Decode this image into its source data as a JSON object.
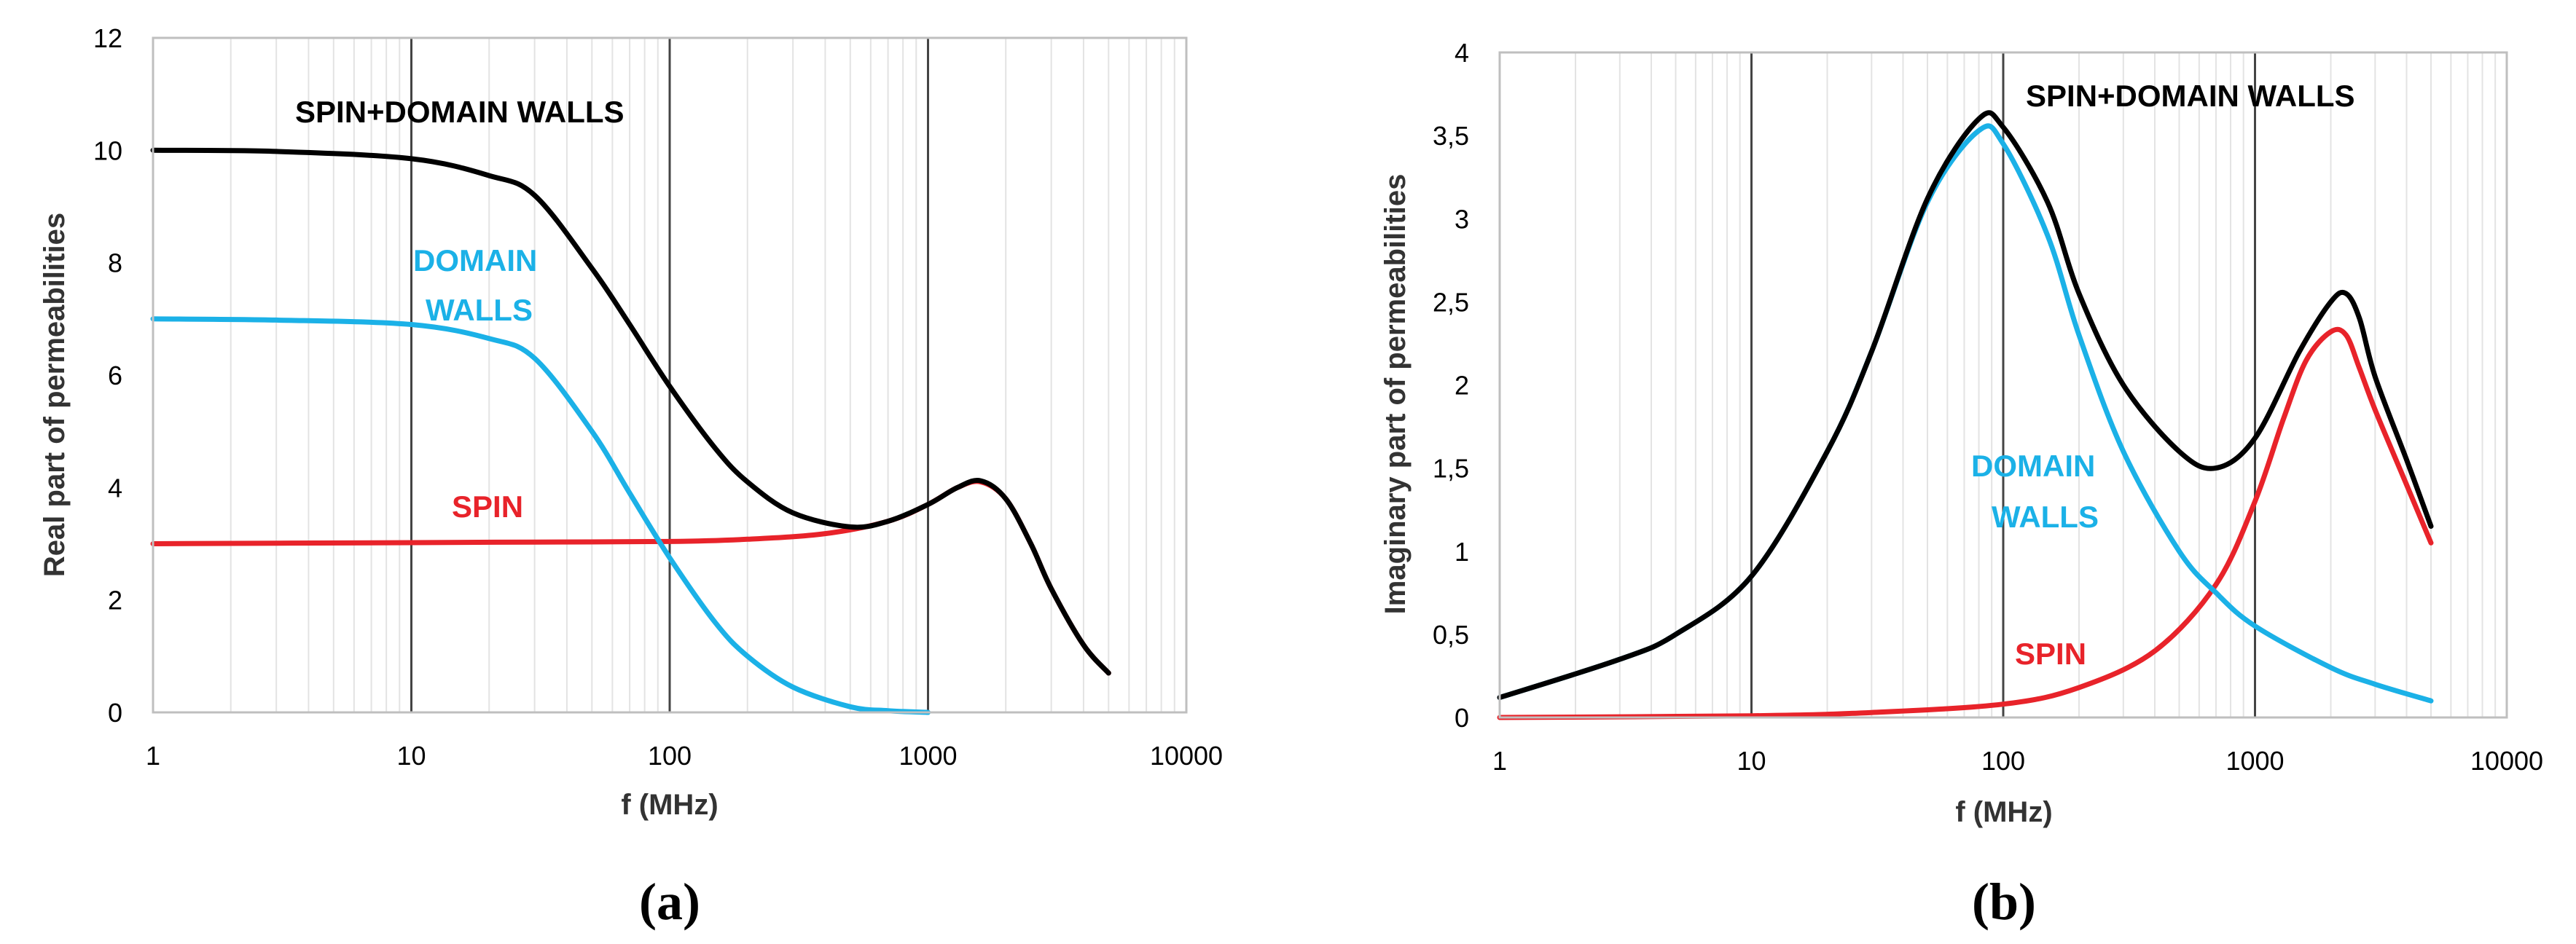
{
  "chart_data": [
    {
      "type": "line",
      "panel_label": "(a)",
      "xlabel": "f (MHz)",
      "ylabel": "Real part of permeabilities",
      "x_scale": "log",
      "xlim": [
        1,
        10000
      ],
      "ylim": [
        0,
        12
      ],
      "x_ticks": [
        "1",
        "10",
        "100",
        "1000",
        "10000"
      ],
      "y_ticks": [
        "0",
        "2",
        "4",
        "6",
        "8",
        "10",
        "12"
      ],
      "grid": "minor-vertical",
      "annotations": [
        {
          "text": "SPIN+DOMAIN WALLS",
          "color": "#000000"
        },
        {
          "text": "DOMAIN",
          "color": "#1bb1e7"
        },
        {
          "text": "WALLS",
          "color": "#1bb1e7"
        },
        {
          "text": "SPIN",
          "color": "#e8232a"
        }
      ],
      "series": [
        {
          "key": "spin",
          "color": "#e8232a",
          "x": [
            1,
            10,
            30,
            100,
            200,
            400,
            700,
            1000,
            1300,
            1600,
            2000,
            2500,
            3000,
            4000,
            5000
          ],
          "y": [
            3,
            3.02,
            3.03,
            3.04,
            3.08,
            3.18,
            3.4,
            3.7,
            4.0,
            4.1,
            3.8,
            3.0,
            2.2,
            1.2,
            0.7
          ]
        },
        {
          "key": "domain_walls",
          "color": "#1bb1e7",
          "x": [
            1,
            3,
            10,
            20,
            30,
            50,
            70,
            100,
            150,
            200,
            300,
            500,
            700,
            1000
          ],
          "y": [
            7,
            6.98,
            6.9,
            6.65,
            6.3,
            5.0,
            3.9,
            2.75,
            1.6,
            1.0,
            0.45,
            0.1,
            0.03,
            0.0
          ]
        },
        {
          "key": "spin_domain_walls",
          "color": "#000000",
          "x": [
            1,
            3,
            10,
            20,
            30,
            50,
            70,
            100,
            150,
            200,
            300,
            500,
            700,
            1000,
            1300,
            1600,
            2000,
            2500,
            3000,
            4000,
            5000
          ],
          "y": [
            10,
            9.98,
            9.85,
            9.55,
            9.2,
            7.9,
            6.9,
            5.8,
            4.7,
            4.1,
            3.55,
            3.3,
            3.4,
            3.7,
            4.0,
            4.12,
            3.8,
            3.0,
            2.2,
            1.2,
            0.7
          ]
        }
      ]
    },
    {
      "type": "line",
      "panel_label": "(b)",
      "xlabel": "f (MHz)",
      "ylabel": "Imaginary part of permeabilities",
      "x_scale": "log",
      "xlim": [
        1,
        10000
      ],
      "ylim": [
        0,
        4
      ],
      "x_ticks": [
        "1",
        "10",
        "100",
        "1000",
        "10000"
      ],
      "y_ticks": [
        "0",
        "0,5",
        "1",
        "1,5",
        "2",
        "2,5",
        "3",
        "3,5",
        "4"
      ],
      "grid": "minor-vertical",
      "annotations": [
        {
          "text": "SPIN+DOMAIN WALLS",
          "color": "#000000"
        },
        {
          "text": "DOMAIN",
          "color": "#1bb1e7"
        },
        {
          "text": "WALLS",
          "color": "#1bb1e7"
        },
        {
          "text": "SPIN",
          "color": "#e8232a"
        }
      ],
      "series": [
        {
          "key": "spin",
          "color": "#e8232a",
          "x": [
            1,
            10,
            30,
            100,
            200,
            400,
            700,
            1000,
            1300,
            1600,
            2000,
            2300,
            2600,
            3000,
            4000,
            5000
          ],
          "y": [
            0,
            0.01,
            0.03,
            0.08,
            0.18,
            0.4,
            0.8,
            1.3,
            1.8,
            2.15,
            2.32,
            2.3,
            2.1,
            1.85,
            1.4,
            1.05
          ]
        },
        {
          "key": "domain_walls",
          "color": "#1bb1e7",
          "x": [
            1,
            3,
            5,
            10,
            20,
            30,
            50,
            80,
            100,
            150,
            200,
            300,
            500,
            700,
            1000,
            2000,
            3000,
            5000
          ],
          "y": [
            0.12,
            0.35,
            0.5,
            0.85,
            1.6,
            2.2,
            3.1,
            3.53,
            3.45,
            2.9,
            2.3,
            1.6,
            1.0,
            0.75,
            0.55,
            0.3,
            0.2,
            0.1
          ]
        },
        {
          "key": "spin_domain_walls",
          "color": "#000000",
          "x": [
            1,
            3,
            5,
            10,
            20,
            30,
            50,
            80,
            100,
            150,
            200,
            300,
            500,
            700,
            1000,
            1500,
            2000,
            2300,
            2600,
            3000,
            4000,
            5000
          ],
          "y": [
            0.12,
            0.35,
            0.5,
            0.85,
            1.6,
            2.2,
            3.12,
            3.6,
            3.55,
            3.1,
            2.55,
            2.0,
            1.6,
            1.5,
            1.68,
            2.2,
            2.5,
            2.55,
            2.4,
            2.05,
            1.55,
            1.15
          ]
        }
      ]
    }
  ]
}
